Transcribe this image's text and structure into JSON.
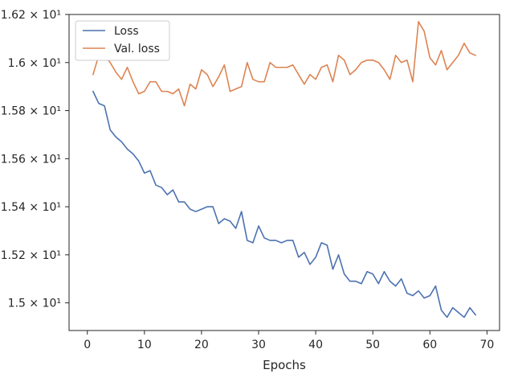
{
  "chart_data": {
    "type": "line",
    "title": "",
    "xlabel": "Epochs",
    "ylabel": "",
    "xlim": [
      -3.2,
      72.2
    ],
    "ylim": [
      14.885,
      16.2
    ],
    "xticks": [
      0,
      10,
      20,
      30,
      40,
      50,
      60,
      70
    ],
    "xtick_labels": [
      "0",
      "10",
      "20",
      "30",
      "40",
      "50",
      "60",
      "70"
    ],
    "yticks": [
      15.0,
      15.2,
      15.4,
      15.6,
      15.8,
      16.0,
      16.2
    ],
    "ytick_labels": [
      "1.5 × 10¹",
      "1.52 × 10¹",
      "1.54 × 10¹",
      "1.56 × 10¹",
      "1.58 × 10¹",
      "1.6 × 10¹",
      "1.62 × 10¹"
    ],
    "legend_position": "upper-left",
    "series": [
      {
        "name": "Loss",
        "color": "#4c72b0",
        "x": [
          1,
          2,
          3,
          4,
          5,
          6,
          7,
          8,
          9,
          10,
          11,
          12,
          13,
          14,
          15,
          16,
          17,
          18,
          19,
          20,
          21,
          22,
          23,
          24,
          25,
          26,
          27,
          28,
          29,
          30,
          31,
          32,
          33,
          34,
          35,
          36,
          37,
          38,
          39,
          40,
          41,
          42,
          43,
          44,
          45,
          46,
          47,
          48,
          49,
          50,
          51,
          52,
          53,
          54,
          55,
          56,
          57,
          58,
          59,
          60,
          61,
          62,
          63,
          64,
          65,
          66,
          67,
          68
        ],
        "values": [
          15.88,
          15.83,
          15.82,
          15.72,
          15.69,
          15.67,
          15.64,
          15.62,
          15.59,
          15.54,
          15.55,
          15.49,
          15.48,
          15.45,
          15.47,
          15.42,
          15.42,
          15.39,
          15.38,
          15.39,
          15.4,
          15.4,
          15.33,
          15.35,
          15.34,
          15.31,
          15.38,
          15.26,
          15.25,
          15.32,
          15.27,
          15.26,
          15.26,
          15.25,
          15.26,
          15.26,
          15.19,
          15.21,
          15.16,
          15.19,
          15.25,
          15.24,
          15.14,
          15.2,
          15.12,
          15.09,
          15.09,
          15.08,
          15.13,
          15.12,
          15.08,
          15.13,
          15.09,
          15.07,
          15.1,
          15.04,
          15.03,
          15.05,
          15.02,
          15.03,
          15.07,
          14.97,
          14.94,
          14.98,
          14.96,
          14.94,
          14.98,
          14.95
        ]
      },
      {
        "name": "Val. loss",
        "color": "#dd8452",
        "x": [
          1,
          2,
          3,
          4,
          5,
          6,
          7,
          8,
          9,
          10,
          11,
          12,
          13,
          14,
          15,
          16,
          17,
          18,
          19,
          20,
          21,
          22,
          23,
          24,
          25,
          26,
          27,
          28,
          29,
          30,
          31,
          32,
          33,
          34,
          35,
          36,
          37,
          38,
          39,
          40,
          41,
          42,
          43,
          44,
          45,
          46,
          47,
          48,
          49,
          50,
          51,
          52,
          53,
          54,
          55,
          56,
          57,
          58,
          59,
          60,
          61,
          62,
          63,
          64,
          65,
          66,
          67,
          68
        ],
        "values": [
          15.95,
          16.03,
          16.03,
          16.0,
          15.96,
          15.93,
          15.98,
          15.92,
          15.87,
          15.88,
          15.92,
          15.92,
          15.88,
          15.88,
          15.87,
          15.89,
          15.82,
          15.91,
          15.89,
          15.97,
          15.95,
          15.9,
          15.94,
          15.99,
          15.88,
          15.89,
          15.9,
          16.0,
          15.93,
          15.92,
          15.92,
          16.0,
          15.98,
          15.98,
          15.98,
          15.99,
          15.95,
          15.91,
          15.95,
          15.93,
          15.98,
          15.99,
          15.92,
          16.03,
          16.01,
          15.95,
          15.97,
          16.0,
          16.01,
          16.01,
          16.0,
          15.97,
          15.93,
          16.03,
          16.0,
          16.01,
          15.92,
          16.17,
          16.13,
          16.02,
          15.99,
          16.05,
          15.97,
          16.0,
          16.03,
          16.08,
          16.04,
          16.03
        ]
      }
    ]
  }
}
